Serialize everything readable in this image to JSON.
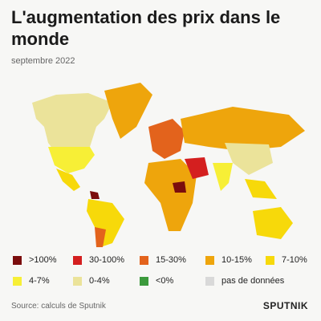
{
  "header": {
    "title": "L'augmentation des prix dans le monde",
    "subtitle": "septembre 2022"
  },
  "legend": [
    {
      "label": ">100%",
      "color": "#7b0d0d"
    },
    {
      "label": "30-100%",
      "color": "#d41f1f"
    },
    {
      "label": "15-30%",
      "color": "#e3631c"
    },
    {
      "label": "10-15%",
      "color": "#eea50c"
    },
    {
      "label": "7-10%",
      "color": "#f7d90a"
    },
    {
      "label": "4-7%",
      "color": "#f7ef36"
    },
    {
      "label": "0-4%",
      "color": "#ebe39a"
    },
    {
      "label": "<0%",
      "color": "#3c9a3c"
    },
    {
      "label": "pas de données",
      "color": "#d9d9d9"
    }
  ],
  "footer": {
    "source": "Source: calculs de Sputnik",
    "logo": "SPUTNIK"
  }
}
